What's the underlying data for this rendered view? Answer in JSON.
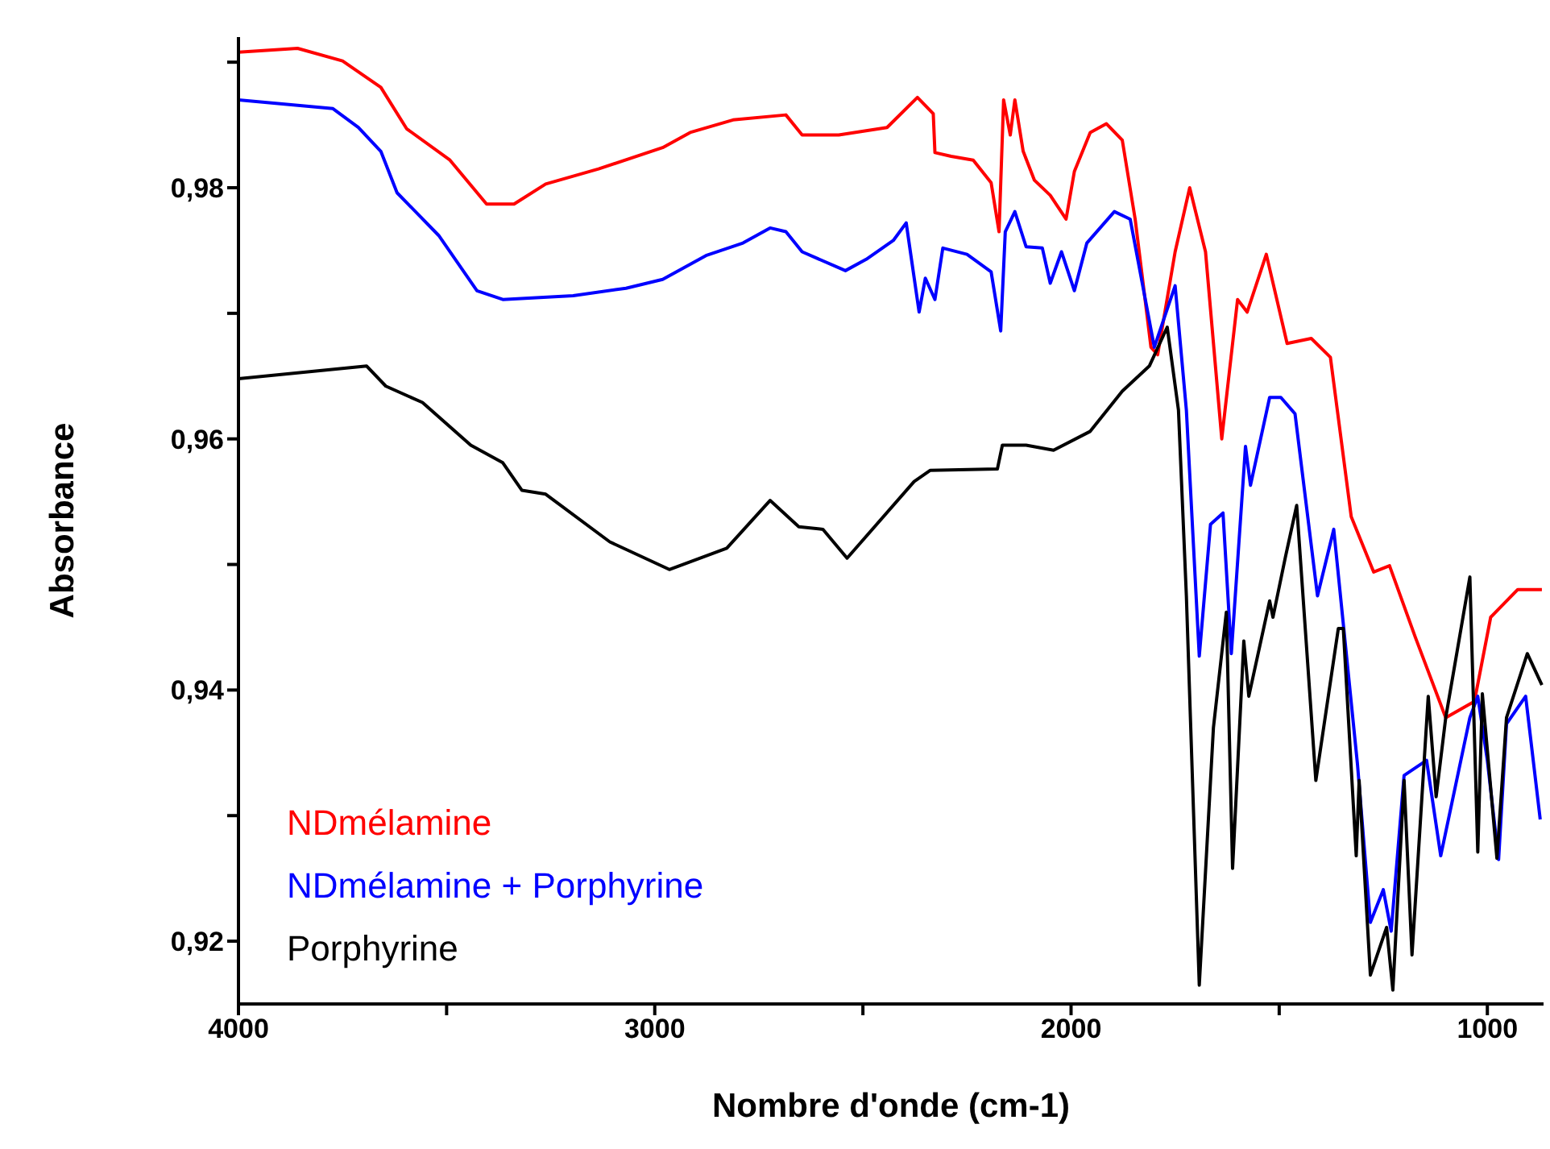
{
  "chart_data": {
    "type": "line",
    "xlabel": "Nombre d'onde (cm-1)",
    "ylabel": "Absorbance",
    "xlim": [
      4000,
      865
    ],
    "xticks": [
      4000,
      {
        "value": 3500,
        "label": null
      },
      3000,
      {
        "value": 2500,
        "label": null
      },
      2000,
      {
        "value": 1500,
        "label": null
      },
      1000
    ],
    "ylim": [
      0.915,
      0.992
    ],
    "yticks": [
      {
        "value": 0.92,
        "label": "0,92"
      },
      {
        "value": 0.93,
        "label": null
      },
      {
        "value": 0.94,
        "label": "0,94"
      },
      {
        "value": 0.95,
        "label": null
      },
      {
        "value": 0.96,
        "label": "0,96"
      },
      {
        "value": 0.97,
        "label": null
      },
      {
        "value": 0.98,
        "label": "0,98"
      },
      {
        "value": 0.99,
        "label": null
      }
    ],
    "grid": false,
    "legend": "bottom left",
    "marker": "none",
    "line_style": "solid",
    "series": [
      {
        "name": "NDmélamine",
        "color": "#ff0000",
        "x": [
          4000,
          3858,
          3750,
          3658,
          3596,
          3492,
          3404,
          3338,
          3262,
          3135,
          2981,
          2915,
          2812,
          2685,
          2646,
          2558,
          2442,
          2369,
          2331,
          2327,
          2288,
          2235,
          2192,
          2173,
          2162,
          2146,
          2135,
          2115,
          2088,
          2050,
          2012,
          1992,
          1954,
          1915,
          1877,
          1846,
          1808,
          1792,
          1750,
          1715,
          1677,
          1638,
          1600,
          1577,
          1531,
          1481,
          1423,
          1377,
          1327,
          1273,
          1235,
          1173,
          1100,
          1031,
          992,
          927,
          869
        ],
        "values": [
          0.9908,
          0.9911,
          0.9901,
          0.988,
          0.9847,
          0.9822,
          0.9787,
          0.9787,
          0.9803,
          0.9815,
          0.9832,
          0.9844,
          0.9854,
          0.9858,
          0.9842,
          0.9842,
          0.9848,
          0.9872,
          0.9859,
          0.9828,
          0.9825,
          0.9822,
          0.9804,
          0.9765,
          0.987,
          0.9842,
          0.987,
          0.9829,
          0.9806,
          0.9794,
          0.9775,
          0.9813,
          0.9844,
          0.9851,
          0.9838,
          0.9775,
          0.9673,
          0.9667,
          0.9749,
          0.98,
          0.9749,
          0.96,
          0.9711,
          0.9701,
          0.9747,
          0.9676,
          0.968,
          0.9665,
          0.9538,
          0.9494,
          0.9499,
          0.9442,
          0.9378,
          0.9391,
          0.9458,
          0.948,
          0.948
        ]
      },
      {
        "name": "NDmélamine + Porphyrine",
        "color": "#0000ff",
        "x": [
          4000,
          3773,
          3712,
          3658,
          3619,
          3519,
          3427,
          3365,
          3196,
          3069,
          2981,
          2877,
          2788,
          2723,
          2685,
          2646,
          2542,
          2492,
          2427,
          2396,
          2365,
          2350,
          2327,
          2308,
          2250,
          2192,
          2169,
          2158,
          2135,
          2108,
          2069,
          2050,
          2023,
          1992,
          1962,
          1896,
          1858,
          1800,
          1750,
          1723,
          1692,
          1665,
          1635,
          1615,
          1581,
          1569,
          1523,
          1496,
          1462,
          1408,
          1369,
          1312,
          1281,
          1250,
          1231,
          1200,
          1146,
          1112,
          1042,
          1023,
          1000,
          973,
          954,
          908,
          873
        ],
        "values": [
          0.987,
          0.9863,
          0.9848,
          0.9829,
          0.9796,
          0.9762,
          0.9718,
          0.9711,
          0.9714,
          0.972,
          0.9727,
          0.9746,
          0.9756,
          0.9768,
          0.9765,
          0.9749,
          0.9734,
          0.9743,
          0.9758,
          0.9772,
          0.9701,
          0.9728,
          0.9711,
          0.9752,
          0.9747,
          0.9733,
          0.9686,
          0.9765,
          0.9781,
          0.9753,
          0.9752,
          0.9724,
          0.9749,
          0.9718,
          0.9756,
          0.9781,
          0.9775,
          0.9673,
          0.9722,
          0.9623,
          0.9427,
          0.9532,
          0.9541,
          0.9429,
          0.9594,
          0.9563,
          0.9633,
          0.9633,
          0.962,
          0.9475,
          0.9528,
          0.9341,
          0.9215,
          0.9241,
          0.9208,
          0.9332,
          0.9344,
          0.9268,
          0.9378,
          0.9395,
          0.9344,
          0.9265,
          0.9373,
          0.9395,
          0.9297
        ]
      },
      {
        "name": "Porphyrine",
        "color": "#000000",
        "x": [
          4000,
          3692,
          3646,
          3558,
          3442,
          3365,
          3319,
          3262,
          3108,
          2965,
          2827,
          2723,
          2654,
          2596,
          2538,
          2377,
          2338,
          2177,
          2165,
          2108,
          2042,
          1954,
          1877,
          1812,
          1769,
          1742,
          1723,
          1692,
          1658,
          1627,
          1612,
          1585,
          1573,
          1523,
          1515,
          1485,
          1458,
          1412,
          1358,
          1346,
          1315,
          1308,
          1281,
          1242,
          1227,
          1200,
          1181,
          1142,
          1123,
          1100,
          1042,
          1023,
          1012,
          977,
          954,
          904,
          869
        ],
        "values": [
          0.9648,
          0.9658,
          0.9642,
          0.9629,
          0.9595,
          0.9581,
          0.9559,
          0.9556,
          0.9518,
          0.9496,
          0.9513,
          0.9551,
          0.953,
          0.9528,
          0.9505,
          0.9566,
          0.9575,
          0.9576,
          0.9595,
          0.9595,
          0.9591,
          0.9606,
          0.9638,
          0.9658,
          0.9689,
          0.9623,
          0.9475,
          0.9165,
          0.937,
          0.9462,
          0.9258,
          0.9439,
          0.9395,
          0.9471,
          0.9458,
          0.9506,
          0.9547,
          0.9328,
          0.9449,
          0.9449,
          0.9268,
          0.9328,
          0.9173,
          0.9211,
          0.9161,
          0.9328,
          0.9189,
          0.9395,
          0.9315,
          0.9378,
          0.949,
          0.9271,
          0.9397,
          0.9266,
          0.9378,
          0.9429,
          0.9404
        ]
      }
    ]
  }
}
